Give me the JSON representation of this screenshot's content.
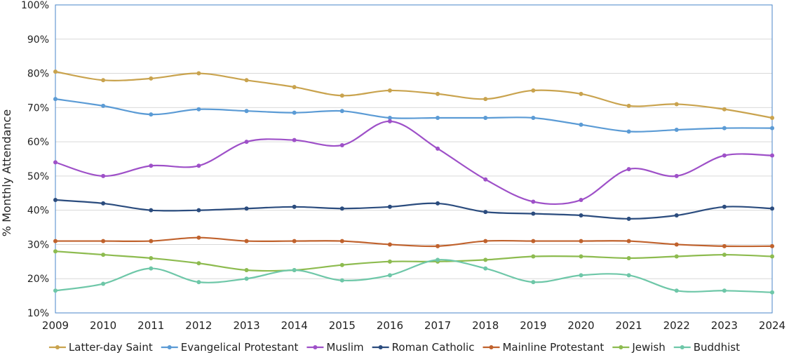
{
  "chart_data": {
    "type": "line",
    "ylabel": "% Monthly Attendance",
    "xlabel": "",
    "x": [
      "2009",
      "2010",
      "2011",
      "2012",
      "2013",
      "2014",
      "2015",
      "2016",
      "2017",
      "2018",
      "2019",
      "2020",
      "2021",
      "2022",
      "2023",
      "2024"
    ],
    "ylim": [
      10,
      100
    ],
    "yticks": [
      "10%",
      "20%",
      "30%",
      "40%",
      "50%",
      "60%",
      "70%",
      "80%",
      "90%",
      "100%"
    ],
    "grid": true,
    "legend": "bottom",
    "series": [
      {
        "name": "Latter-day Saint",
        "color": "#c9a34e",
        "values": [
          80.5,
          78,
          78.5,
          80,
          78,
          76,
          73.5,
          75,
          74,
          72.5,
          75,
          74,
          70.5,
          71,
          69.5,
          67
        ]
      },
      {
        "name": "Evangelical Protestant",
        "color": "#5b9bd5",
        "values": [
          72.5,
          70.5,
          68,
          69.5,
          69,
          68.5,
          69,
          67,
          67,
          67,
          67,
          65,
          63,
          63.5,
          64,
          64
        ]
      },
      {
        "name": "Muslim",
        "color": "#9e50c8",
        "values": [
          54,
          50,
          53,
          53,
          60,
          60.5,
          59,
          66,
          58,
          49,
          42.5,
          43,
          52,
          50,
          56,
          56
        ]
      },
      {
        "name": "Roman Catholic",
        "color": "#2b4c7e",
        "values": [
          43,
          42,
          40,
          40,
          40.5,
          41,
          40.5,
          41,
          42,
          39.5,
          39,
          38.5,
          37.5,
          38.5,
          41,
          40.5
        ]
      },
      {
        "name": "Mainline Protestant",
        "color": "#c0622d",
        "values": [
          31,
          31,
          31,
          32,
          31,
          31,
          31,
          30,
          29.5,
          31,
          31,
          31,
          31,
          30,
          29.5,
          29.5
        ]
      },
      {
        "name": "Jewish",
        "color": "#8dbb4f",
        "values": [
          28,
          27,
          26,
          24.5,
          22.5,
          22.5,
          24,
          25,
          25,
          25.5,
          26.5,
          26.5,
          26,
          26.5,
          27,
          26.5
        ]
      },
      {
        "name": "Buddhist",
        "color": "#6ec7a8",
        "values": [
          16.5,
          18.5,
          23,
          19,
          20,
          22.5,
          19.5,
          21,
          25.5,
          23,
          19,
          21,
          21,
          16.5,
          16.5,
          16
        ]
      }
    ]
  }
}
